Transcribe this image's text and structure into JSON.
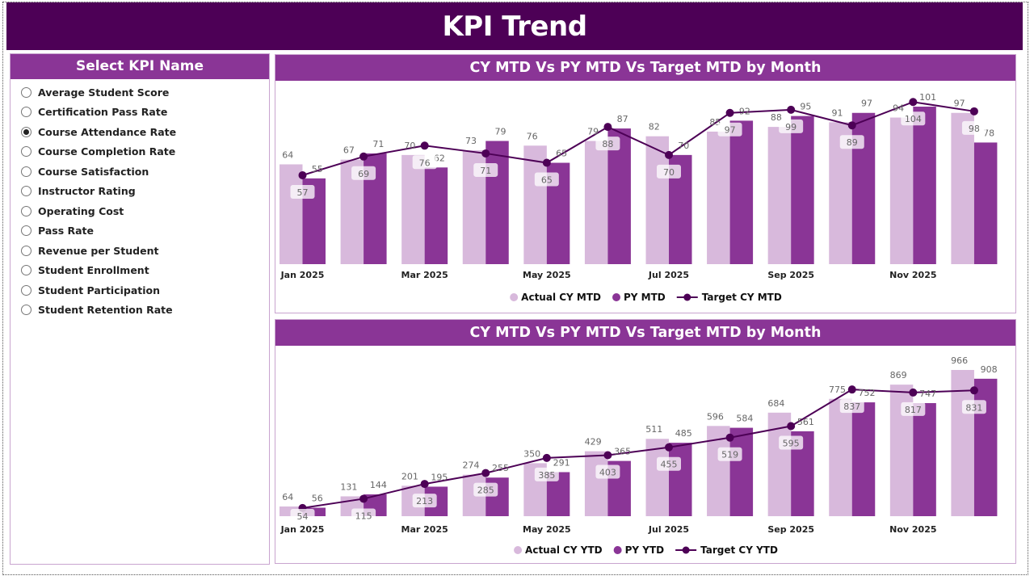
{
  "header": {
    "title": "KPI Trend"
  },
  "slicer": {
    "title": "Select KPI Name",
    "items": [
      {
        "label": "Average Student Score",
        "selected": false
      },
      {
        "label": "Certification Pass Rate",
        "selected": false
      },
      {
        "label": "Course Attendance Rate",
        "selected": true
      },
      {
        "label": "Course Completion Rate",
        "selected": false
      },
      {
        "label": "Course Satisfaction",
        "selected": false
      },
      {
        "label": "Instructor Rating",
        "selected": false
      },
      {
        "label": "Operating Cost",
        "selected": false
      },
      {
        "label": "Pass Rate",
        "selected": false
      },
      {
        "label": "Revenue per Student",
        "selected": false
      },
      {
        "label": "Student Enrollment",
        "selected": false
      },
      {
        "label": "Student Participation",
        "selected": false
      },
      {
        "label": "Student Retention Rate",
        "selected": false
      }
    ]
  },
  "colors": {
    "header": "#4d0056",
    "title_bar": "#8a3596",
    "actual": "#d8b9dc",
    "py": "#8a3596",
    "target": "#4d0056"
  },
  "chart_data": [
    {
      "type": "bar",
      "title": "CY MTD Vs PY MTD Vs Target MTD by Month",
      "categories": [
        "Jan 2025",
        "Feb 2025",
        "Mar 2025",
        "Apr 2025",
        "May 2025",
        "Jun 2025",
        "Jul 2025",
        "Aug 2025",
        "Sep 2025",
        "Oct 2025",
        "Nov 2025",
        "Dec 2025"
      ],
      "tick_labels": [
        "Jan 2025",
        "",
        "Mar 2025",
        "",
        "May 2025",
        "",
        "Jul 2025",
        "",
        "Sep 2025",
        "",
        "Nov 2025",
        ""
      ],
      "ylim": [
        0,
        115
      ],
      "legend_position": "bottom",
      "series": [
        {
          "name": "Actual CY MTD",
          "kind": "bar",
          "values": [
            64,
            67,
            70,
            73,
            76,
            79,
            82,
            85,
            88,
            91,
            94,
            97
          ]
        },
        {
          "name": "PY MTD",
          "kind": "bar",
          "values": [
            55,
            71,
            62,
            79,
            65,
            87,
            70,
            92,
            95,
            97,
            101,
            78
          ]
        },
        {
          "name": "Target CY MTD",
          "kind": "line",
          "values": [
            57,
            69,
            76,
            71,
            65,
            88,
            70,
            97,
            99,
            89,
            104,
            98
          ]
        }
      ]
    },
    {
      "type": "bar",
      "title": "CY MTD Vs PY MTD Vs Target MTD by Month",
      "categories": [
        "Jan 2025",
        "Feb 2025",
        "Mar 2025",
        "Apr 2025",
        "May 2025",
        "Jun 2025",
        "Jul 2025",
        "Aug 2025",
        "Sep 2025",
        "Oct 2025",
        "Nov 2025",
        "Dec 2025"
      ],
      "tick_labels": [
        "Jan 2025",
        "",
        "Mar 2025",
        "",
        "May 2025",
        "",
        "Jul 2025",
        "",
        "Sep 2025",
        "",
        "Nov 2025",
        ""
      ],
      "ylim": [
        0,
        1110
      ],
      "legend_position": "bottom",
      "series": [
        {
          "name": "Actual CY YTD",
          "kind": "bar",
          "values": [
            64,
            131,
            201,
            274,
            350,
            429,
            511,
            596,
            684,
            775,
            869,
            966
          ]
        },
        {
          "name": "PY YTD",
          "kind": "bar",
          "values": [
            56,
            144,
            195,
            255,
            291,
            365,
            485,
            584,
            561,
            752,
            747,
            908
          ]
        },
        {
          "name": "Target CY YTD",
          "kind": "line",
          "values": [
            54,
            115,
            213,
            285,
            385,
            403,
            455,
            519,
            595,
            837,
            817,
            831
          ]
        }
      ]
    }
  ]
}
